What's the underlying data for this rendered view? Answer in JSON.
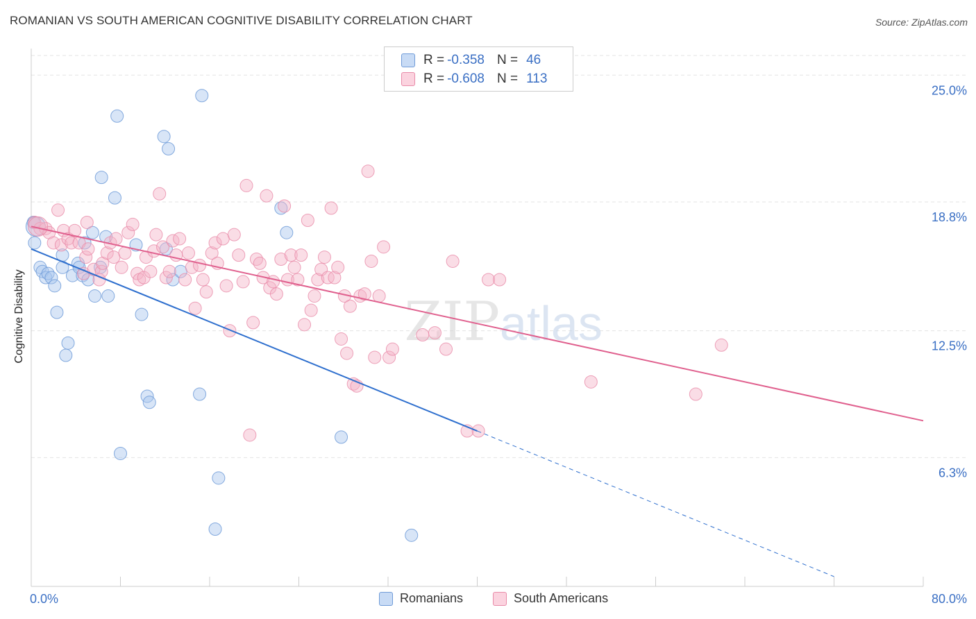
{
  "title": "ROMANIAN VS SOUTH AMERICAN COGNITIVE DISABILITY CORRELATION CHART",
  "source": "Source: ZipAtlas.com",
  "watermark": "ZIPatlas",
  "legend": {
    "rows": [
      {
        "r_label": "R =",
        "r_value": "-0.358",
        "n_label": "N =",
        "n_value": "46",
        "color": "#a9c6ee"
      },
      {
        "r_label": "R =",
        "r_value": "-0.608",
        "n_label": "N =",
        "n_value": "113",
        "color": "#f5b4c8"
      }
    ]
  },
  "bottom_legend": [
    {
      "label": "Romanians",
      "color": "#a9c6ee"
    },
    {
      "label": "South Americans",
      "color": "#f5b4c8"
    }
  ],
  "colors": {
    "blue_point": "#a9c6ee",
    "blue_stroke": "#6f9bd8",
    "blue_line": "#2e6fce",
    "pink_point": "#f5b4c8",
    "pink_stroke": "#e88aa8",
    "pink_line": "#e0608e",
    "tick_text": "#3a6fc4",
    "grid": "#e3e3e3"
  },
  "chart_data": {
    "type": "scatter",
    "title": "ROMANIAN VS SOUTH AMERICAN COGNITIVE DISABILITY CORRELATION CHART",
    "xlabel": "",
    "ylabel": "Cognitive Disability",
    "xlim": [
      0,
      80
    ],
    "ylim": [
      0,
      26.3
    ],
    "x_tick_labels": [
      {
        "v": 0,
        "label": "0.0%"
      },
      {
        "v": 80,
        "label": "80.0%"
      }
    ],
    "y_tick_labels": [
      {
        "v": 6.3,
        "label": "6.3%"
      },
      {
        "v": 12.5,
        "label": "12.5%"
      },
      {
        "v": 18.8,
        "label": "18.8%"
      },
      {
        "v": 25.0,
        "label": "25.0%"
      }
    ],
    "grid": true,
    "legend_position": "top-center",
    "series": [
      {
        "name": "Romanians",
        "r": -0.358,
        "n": 46,
        "trend": {
          "x0": 0.0,
          "y0": 16.5,
          "x1": 40.0,
          "y1": 7.6,
          "dashed_to_x": 72.0
        },
        "points": [
          [
            0.2,
            17.8
          ],
          [
            0.3,
            16.8
          ],
          [
            0.8,
            15.6
          ],
          [
            1.0,
            15.4
          ],
          [
            1.3,
            15.1
          ],
          [
            1.5,
            15.3
          ],
          [
            1.8,
            15.1
          ],
          [
            2.1,
            14.7
          ],
          [
            2.3,
            13.4
          ],
          [
            2.8,
            16.2
          ],
          [
            2.8,
            15.6
          ],
          [
            3.1,
            11.3
          ],
          [
            3.3,
            11.9
          ],
          [
            3.7,
            15.2
          ],
          [
            4.2,
            15.8
          ],
          [
            4.3,
            15.6
          ],
          [
            4.6,
            15.2
          ],
          [
            4.8,
            16.8
          ],
          [
            5.1,
            15.0
          ],
          [
            5.5,
            17.3
          ],
          [
            5.7,
            14.2
          ],
          [
            6.2,
            15.6
          ],
          [
            6.3,
            20.0
          ],
          [
            6.7,
            17.1
          ],
          [
            6.9,
            14.2
          ],
          [
            7.5,
            19.0
          ],
          [
            7.7,
            23.0
          ],
          [
            8.0,
            6.5
          ],
          [
            9.4,
            16.7
          ],
          [
            9.9,
            13.3
          ],
          [
            10.4,
            9.3
          ],
          [
            10.6,
            9.0
          ],
          [
            11.9,
            22.0
          ],
          [
            12.1,
            16.5
          ],
          [
            12.3,
            21.4
          ],
          [
            12.7,
            15.0
          ],
          [
            13.4,
            15.4
          ],
          [
            15.1,
            9.4
          ],
          [
            15.3,
            24.0
          ],
          [
            16.5,
            2.8
          ],
          [
            16.8,
            5.3
          ],
          [
            22.4,
            18.5
          ],
          [
            22.9,
            17.3
          ],
          [
            27.8,
            7.3
          ],
          [
            34.1,
            2.5
          ],
          [
            0.4,
            17.6
          ]
        ]
      },
      {
        "name": "South Americans",
        "r": -0.608,
        "n": 113,
        "trend": {
          "x0": 0.0,
          "y0": 17.6,
          "x1": 80.0,
          "y1": 8.1
        },
        "points": [
          [
            0.3,
            17.8
          ],
          [
            0.8,
            17.5
          ],
          [
            1.3,
            17.5
          ],
          [
            1.6,
            17.3
          ],
          [
            2.0,
            16.8
          ],
          [
            2.4,
            18.4
          ],
          [
            2.7,
            16.7
          ],
          [
            2.9,
            17.4
          ],
          [
            3.3,
            17.0
          ],
          [
            3.6,
            16.8
          ],
          [
            3.9,
            17.4
          ],
          [
            4.3,
            16.8
          ],
          [
            4.7,
            15.3
          ],
          [
            4.9,
            16.1
          ],
          [
            5.0,
            17.8
          ],
          [
            5.1,
            16.5
          ],
          [
            5.6,
            15.5
          ],
          [
            6.1,
            15.0
          ],
          [
            6.3,
            15.4
          ],
          [
            6.4,
            15.8
          ],
          [
            6.8,
            16.3
          ],
          [
            7.1,
            16.8
          ],
          [
            7.4,
            16.1
          ],
          [
            7.6,
            17.0
          ],
          [
            8.1,
            15.6
          ],
          [
            8.4,
            16.3
          ],
          [
            8.7,
            17.3
          ],
          [
            9.1,
            17.7
          ],
          [
            9.5,
            15.3
          ],
          [
            9.7,
            15.0
          ],
          [
            10.1,
            15.1
          ],
          [
            10.3,
            16.1
          ],
          [
            10.7,
            15.4
          ],
          [
            11.0,
            16.4
          ],
          [
            11.2,
            17.2
          ],
          [
            11.5,
            19.2
          ],
          [
            11.8,
            16.6
          ],
          [
            12.1,
            15.1
          ],
          [
            12.4,
            15.4
          ],
          [
            12.7,
            16.9
          ],
          [
            13.0,
            16.2
          ],
          [
            13.3,
            17.0
          ],
          [
            13.8,
            15.0
          ],
          [
            14.1,
            16.3
          ],
          [
            14.4,
            15.6
          ],
          [
            14.7,
            13.6
          ],
          [
            15.1,
            15.7
          ],
          [
            15.4,
            15.0
          ],
          [
            15.7,
            14.4
          ],
          [
            16.2,
            16.3
          ],
          [
            16.5,
            16.8
          ],
          [
            16.7,
            15.8
          ],
          [
            17.2,
            17.0
          ],
          [
            17.5,
            14.7
          ],
          [
            17.8,
            12.5
          ],
          [
            18.2,
            17.2
          ],
          [
            18.6,
            16.2
          ],
          [
            19.0,
            14.9
          ],
          [
            19.3,
            19.6
          ],
          [
            19.6,
            7.4
          ],
          [
            19.9,
            12.9
          ],
          [
            20.2,
            16.0
          ],
          [
            20.5,
            15.8
          ],
          [
            20.8,
            15.1
          ],
          [
            21.1,
            19.1
          ],
          [
            21.4,
            14.6
          ],
          [
            21.7,
            14.9
          ],
          [
            22.0,
            14.3
          ],
          [
            22.4,
            16.0
          ],
          [
            22.7,
            18.6
          ],
          [
            23.0,
            15.0
          ],
          [
            23.3,
            16.2
          ],
          [
            23.6,
            15.6
          ],
          [
            23.9,
            15.0
          ],
          [
            24.2,
            16.2
          ],
          [
            24.5,
            12.8
          ],
          [
            24.8,
            17.9
          ],
          [
            25.1,
            13.5
          ],
          [
            25.4,
            14.2
          ],
          [
            25.7,
            15.0
          ],
          [
            26.0,
            15.5
          ],
          [
            26.3,
            16.1
          ],
          [
            26.6,
            15.1
          ],
          [
            26.9,
            18.5
          ],
          [
            27.2,
            15.1
          ],
          [
            27.5,
            15.6
          ],
          [
            27.8,
            12.1
          ],
          [
            28.1,
            14.2
          ],
          [
            28.3,
            11.4
          ],
          [
            28.6,
            13.7
          ],
          [
            28.9,
            9.9
          ],
          [
            29.2,
            9.8
          ],
          [
            29.5,
            14.2
          ],
          [
            29.9,
            14.3
          ],
          [
            30.2,
            20.3
          ],
          [
            30.5,
            15.9
          ],
          [
            30.8,
            11.2
          ],
          [
            31.2,
            14.2
          ],
          [
            31.6,
            16.6
          ],
          [
            32.1,
            11.2
          ],
          [
            32.4,
            11.6
          ],
          [
            35.1,
            12.3
          ],
          [
            36.2,
            12.4
          ],
          [
            37.2,
            11.6
          ],
          [
            37.8,
            15.9
          ],
          [
            39.1,
            7.6
          ],
          [
            40.1,
            7.6
          ],
          [
            41.0,
            15.0
          ],
          [
            42.0,
            15.0
          ],
          [
            50.2,
            10.0
          ],
          [
            59.6,
            9.4
          ],
          [
            61.9,
            11.8
          ],
          [
            0.6,
            17.6
          ]
        ]
      }
    ]
  }
}
